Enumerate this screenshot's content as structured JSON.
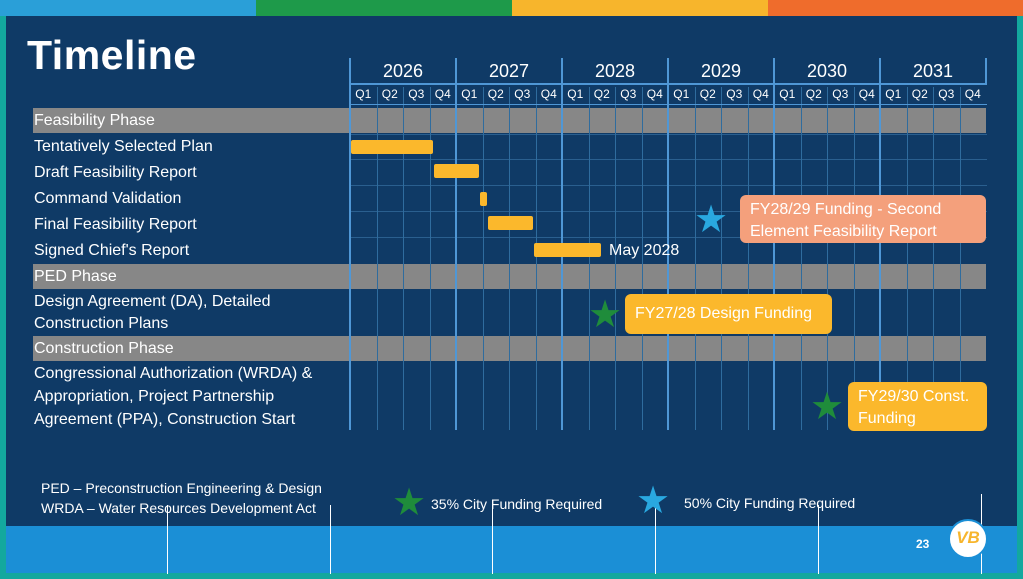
{
  "title": "Timeline",
  "years": [
    "2026",
    "2027",
    "2028",
    "2029",
    "2030",
    "2031"
  ],
  "quarters": [
    "Q1",
    "Q2",
    "Q3",
    "Q4"
  ],
  "phases": {
    "feasibility": "Feasibility Phase",
    "ped": "PED Phase",
    "construction": "Construction Phase"
  },
  "tasks": {
    "tsp": "Tentatively Selected Plan",
    "draft": "Draft Feasibility Report",
    "command": "Command Validation",
    "final": "Final Feasibility Report",
    "chief": "Signed Chief's Report",
    "design_line1": "Design Agreement (DA), Detailed",
    "design_line2": "Construction Plans",
    "congress_line1": "Congressional Authorization (WRDA) &",
    "congress_line2": "Appropriation, Project Partnership",
    "congress_line3": "Agreement (PPA), Construction Start"
  },
  "milestone_label": "May 2028",
  "callouts": {
    "second_element_line1": "FY28/29 Funding - Second",
    "second_element_line2": "Element Feasibility Report",
    "design_funding": "FY27/28 Design Funding",
    "const_line1": "FY29/30 Const.",
    "const_line2": "Funding"
  },
  "notes": {
    "ped": "PED – Preconstruction Engineering & Design",
    "wrda": "WRDA – Water Resources Development Act"
  },
  "legend": {
    "green": "35% City Funding Required",
    "blue": "50% City Funding Required"
  },
  "page_number": "23",
  "logo_text": "VB",
  "colors": {
    "bg": "#0f3a66",
    "gantt_bar": "#fbb82c",
    "phase_bar": "#878787",
    "green_star": "#1f8c3b",
    "blue_star": "#29a8e0",
    "salmon_callout": "#f4a07c",
    "gold_callout": "#fbb82c"
  }
}
